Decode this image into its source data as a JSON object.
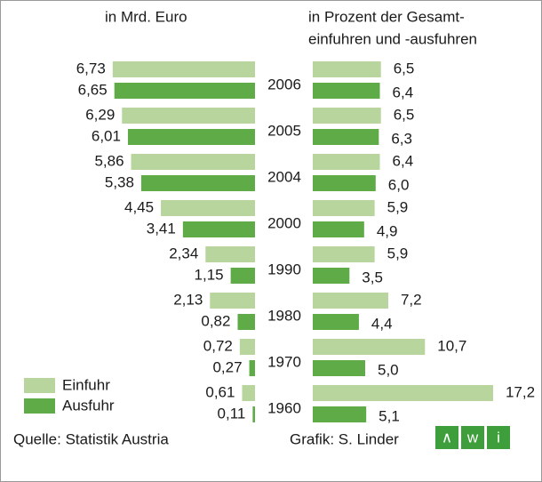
{
  "chart_data": {
    "type": "butterfly-bar",
    "categories": [
      "2006",
      "2005",
      "2004",
      "2000",
      "1990",
      "1980",
      "1970",
      "1960"
    ],
    "panels": [
      {
        "label": [
          "in Mrd. Euro"
        ],
        "xlim": [
          0,
          7
        ],
        "series": [
          {
            "name": "Einfuhr",
            "color": "#b7d59c",
            "values": [
              6.73,
              6.29,
              5.86,
              4.45,
              2.34,
              2.13,
              0.72,
              0.61
            ],
            "value_labels": [
              "6,73",
              "6,29",
              "5,86",
              "4,45",
              "2,34",
              "2,13",
              "0,72",
              "0,61"
            ]
          },
          {
            "name": "Ausfuhr",
            "color": "#5eab48",
            "values": [
              6.65,
              6.01,
              5.38,
              3.41,
              1.15,
              0.82,
              0.27,
              0.11
            ],
            "value_labels": [
              "6,65",
              "6,01",
              "5,38",
              "3,41",
              "1,15",
              "0,82",
              "0,27",
              "0,11"
            ]
          }
        ]
      },
      {
        "label": [
          "in Prozent der Gesamt-",
          "einfuhren und -ausfuhren"
        ],
        "xlim": [
          0,
          20
        ],
        "series": [
          {
            "name": "Einfuhr",
            "color": "#b7d59c",
            "values": [
              6.5,
              6.5,
              6.4,
              5.9,
              5.9,
              7.2,
              10.7,
              17.2
            ],
            "value_labels": [
              "6,5",
              "6,5",
              "6,4",
              "5,9",
              "5,9",
              "7,2",
              "10,7",
              "17,2"
            ]
          },
          {
            "name": "Ausfuhr",
            "color": "#5eab48",
            "values": [
              6.4,
              6.3,
              6.0,
              4.9,
              3.5,
              4.4,
              5.0,
              5.1
            ],
            "value_labels": [
              "6,4",
              "6,3",
              "6,0",
              "4,9",
              "3,5",
              "4,4",
              "5,0",
              "5,1"
            ]
          }
        ]
      }
    ],
    "source": "Quelle: Statistik Austria",
    "credit": "Grafik: S. Linder",
    "logo": [
      "∧",
      "w",
      "i"
    ]
  }
}
